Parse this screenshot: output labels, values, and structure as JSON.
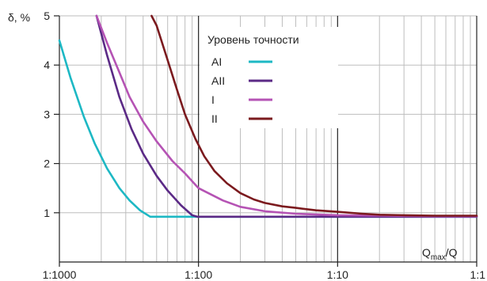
{
  "chart_data": {
    "type": "line",
    "ylabel": "δ, %",
    "xlabel": {
      "main": "Q",
      "sub": "max",
      "suffix": "/Q"
    },
    "x_scale": "log",
    "xlim": [
      0.001,
      1
    ],
    "ylim": [
      0,
      5
    ],
    "x_ticks": [
      {
        "value": 0.001,
        "label": "1:1000"
      },
      {
        "value": 0.01,
        "label": "1:100"
      },
      {
        "value": 0.1,
        "label": "1:10"
      },
      {
        "value": 1,
        "label": "1:1"
      }
    ],
    "y_ticks": [
      {
        "value": 1,
        "label": "1"
      },
      {
        "value": 2,
        "label": "2"
      },
      {
        "value": 3,
        "label": "3"
      },
      {
        "value": 4,
        "label": "4"
      },
      {
        "value": 5,
        "label": "5"
      }
    ],
    "grid": true,
    "legend": {
      "title": "Уровень точности",
      "position": "top-center"
    },
    "series": [
      {
        "name": "AI",
        "color": "#1db8c4",
        "points": [
          [
            0.001,
            4.5
          ],
          [
            0.0012,
            3.75
          ],
          [
            0.0015,
            2.95
          ],
          [
            0.0018,
            2.4
          ],
          [
            0.0022,
            1.9
          ],
          [
            0.0027,
            1.5
          ],
          [
            0.0032,
            1.25
          ],
          [
            0.0038,
            1.05
          ],
          [
            0.0045,
            0.92
          ],
          [
            0.01,
            0.92
          ],
          [
            0.1,
            0.92
          ],
          [
            1,
            0.92
          ]
        ]
      },
      {
        "name": "AII",
        "color": "#5b2a86",
        "points": [
          [
            0.00185,
            5.0
          ],
          [
            0.0022,
            4.2
          ],
          [
            0.0027,
            3.35
          ],
          [
            0.0033,
            2.7
          ],
          [
            0.004,
            2.2
          ],
          [
            0.005,
            1.75
          ],
          [
            0.006,
            1.45
          ],
          [
            0.0075,
            1.15
          ],
          [
            0.009,
            0.95
          ],
          [
            0.0098,
            0.92
          ],
          [
            0.1,
            0.92
          ],
          [
            1,
            0.92
          ]
        ]
      },
      {
        "name": "I",
        "color": "#b553b4",
        "points": [
          [
            0.00185,
            5.0
          ],
          [
            0.0022,
            4.45
          ],
          [
            0.0027,
            3.85
          ],
          [
            0.0032,
            3.35
          ],
          [
            0.004,
            2.85
          ],
          [
            0.005,
            2.45
          ],
          [
            0.0065,
            2.05
          ],
          [
            0.008,
            1.8
          ],
          [
            0.01,
            1.5
          ],
          [
            0.015,
            1.25
          ],
          [
            0.02,
            1.12
          ],
          [
            0.03,
            1.03
          ],
          [
            0.05,
            0.98
          ],
          [
            0.1,
            0.95
          ],
          [
            0.2,
            0.94
          ],
          [
            0.5,
            0.93
          ],
          [
            1,
            0.93
          ]
        ]
      },
      {
        "name": "II",
        "color": "#7b1a1e",
        "points": [
          [
            0.0046,
            5.0
          ],
          [
            0.005,
            4.8
          ],
          [
            0.006,
            4.1
          ],
          [
            0.007,
            3.5
          ],
          [
            0.008,
            3.0
          ],
          [
            0.0095,
            2.5
          ],
          [
            0.011,
            2.15
          ],
          [
            0.013,
            1.85
          ],
          [
            0.016,
            1.6
          ],
          [
            0.02,
            1.4
          ],
          [
            0.025,
            1.27
          ],
          [
            0.03,
            1.2
          ],
          [
            0.04,
            1.13
          ],
          [
            0.05,
            1.1
          ],
          [
            0.07,
            1.05
          ],
          [
            0.1,
            1.02
          ],
          [
            0.15,
            0.98
          ],
          [
            0.2,
            0.96
          ],
          [
            0.3,
            0.95
          ],
          [
            0.5,
            0.94
          ],
          [
            1,
            0.94
          ]
        ]
      }
    ]
  }
}
